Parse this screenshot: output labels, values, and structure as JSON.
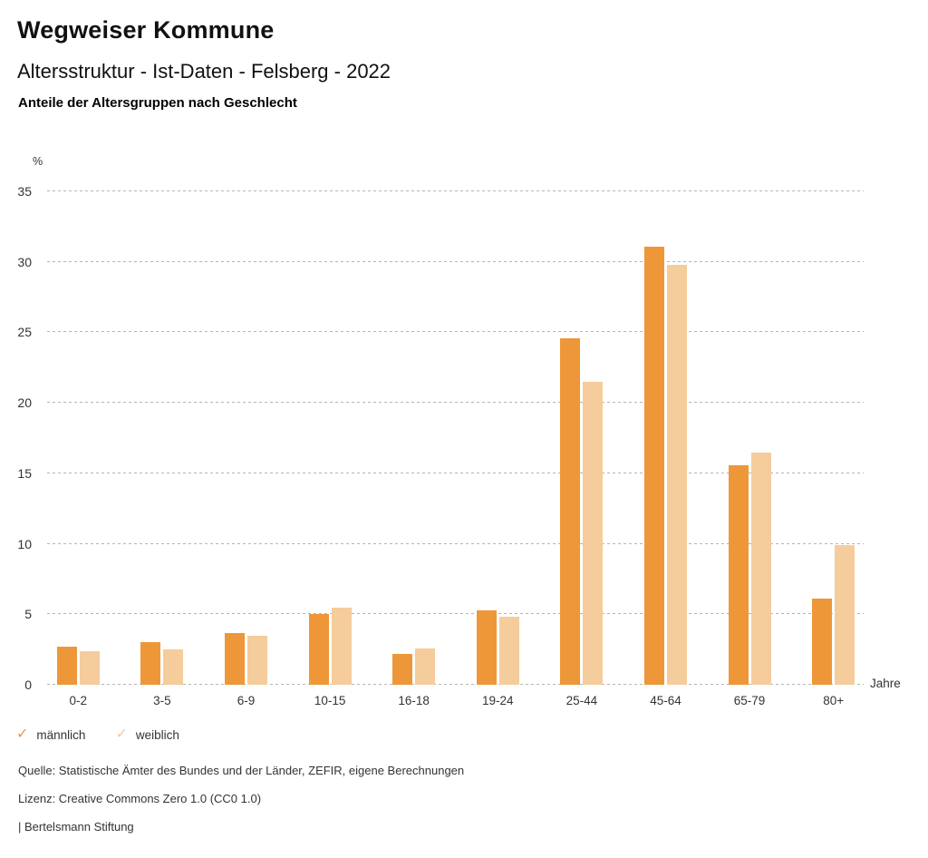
{
  "header": {
    "title": "Wegweiser Kommune",
    "subtitle": "Altersstruktur - Ist-Daten - Felsberg - 2022",
    "section_title": "Anteile der Altersgruppen nach Geschlecht"
  },
  "chart_data": {
    "type": "bar",
    "title": "Anteile der Altersgruppen nach Geschlecht",
    "xlabel": "Jahre",
    "ylabel": "%",
    "y_unit": "%",
    "x_unit": "Jahre",
    "ylim": [
      0,
      35
    ],
    "yticks": [
      0,
      5,
      10,
      15,
      20,
      25,
      30,
      35
    ],
    "grid": "horizontal-dotted",
    "legend_position": "bottom-left",
    "categories": [
      "0-2",
      "3-5",
      "6-9",
      "10-15",
      "16-18",
      "19-24",
      "25-44",
      "45-64",
      "65-79",
      "80+"
    ],
    "series": [
      {
        "name": "männlich",
        "color": "#ED9738",
        "values": [
          2.7,
          3.0,
          3.7,
          5.0,
          2.2,
          5.3,
          24.6,
          31.1,
          15.6,
          6.1
        ]
      },
      {
        "name": "weiblich",
        "color": "#F5CC9B",
        "values": [
          2.4,
          2.5,
          3.5,
          5.5,
          2.6,
          4.8,
          21.5,
          29.8,
          16.5,
          9.9
        ]
      }
    ]
  },
  "legend": {
    "check_glyph": "✓"
  },
  "footer": {
    "source": "Quelle: Statistische Ämter des Bundes und der Länder, ZEFIR, eigene Berechnungen",
    "license": "Lizenz: Creative Commons Zero 1.0 (CC0 1.0)",
    "attribution": "| Bertelsmann Stiftung"
  }
}
